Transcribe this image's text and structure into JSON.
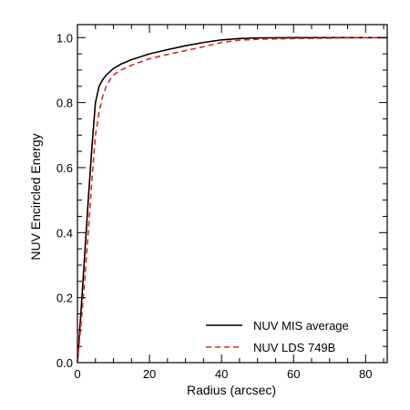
{
  "chart_data": {
    "type": "line",
    "title": "",
    "xlabel": "Radius (arcsec)",
    "ylabel": "NUV Encircled Energy",
    "xlim": [
      0,
      86
    ],
    "ylim": [
      0,
      1.04
    ],
    "xticks": [
      0,
      20,
      40,
      60,
      80
    ],
    "yticks": [
      0.0,
      0.2,
      0.4,
      0.6,
      0.8,
      1.0
    ],
    "xtick_labels": [
      "0",
      "20",
      "40",
      "60",
      "80"
    ],
    "ytick_labels": [
      "0.0",
      "0.2",
      "0.4",
      "0.6",
      "0.8",
      "1.0"
    ],
    "grid": false,
    "legend_position": "bottom-right",
    "series": [
      {
        "name": "NUV MIS average",
        "color": "#000000",
        "style": "solid",
        "x": [
          0,
          1,
          2,
          3,
          4,
          5,
          6,
          7,
          8,
          10,
          12,
          15,
          20,
          25,
          30,
          35,
          40,
          45,
          50,
          60,
          70,
          80,
          86
        ],
        "y": [
          0.0,
          0.16,
          0.33,
          0.5,
          0.66,
          0.8,
          0.85,
          0.87,
          0.885,
          0.905,
          0.918,
          0.932,
          0.95,
          0.963,
          0.975,
          0.985,
          0.993,
          0.997,
          0.999,
          1.0,
          1.0,
          1.0,
          1.0
        ]
      },
      {
        "name": "NUV LDS 749B",
        "color": "#e8231b",
        "style": "dashed",
        "x": [
          0,
          1,
          2,
          3,
          4,
          5,
          6,
          7,
          8,
          9,
          10,
          12,
          15,
          20,
          25,
          30,
          35,
          40,
          45,
          50,
          60,
          70,
          80,
          86
        ],
        "y": [
          0.0,
          0.12,
          0.25,
          0.4,
          0.56,
          0.7,
          0.77,
          0.82,
          0.85,
          0.87,
          0.885,
          0.9,
          0.915,
          0.935,
          0.948,
          0.96,
          0.972,
          0.985,
          0.992,
          0.995,
          0.997,
          0.998,
          1.0,
          1.0
        ]
      }
    ]
  }
}
